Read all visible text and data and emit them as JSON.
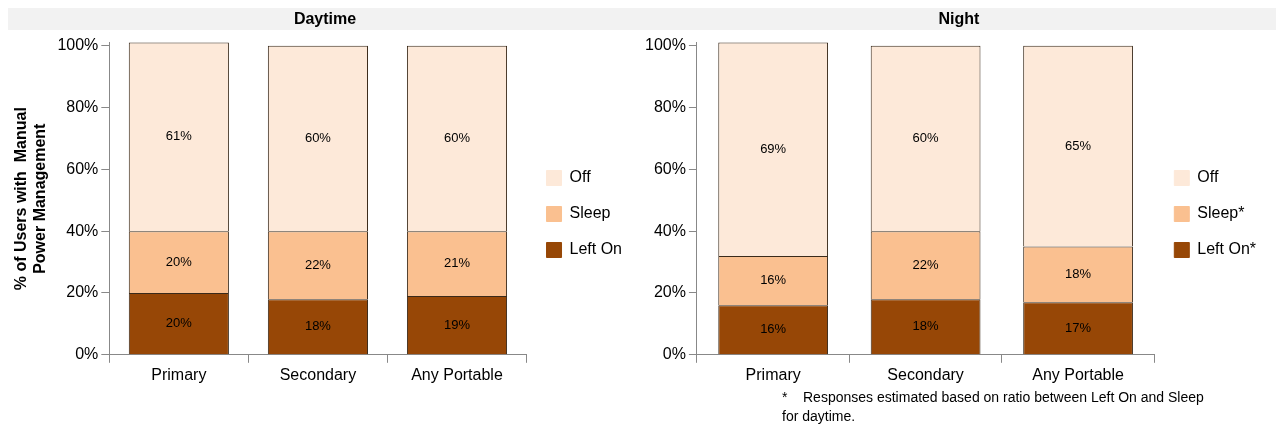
{
  "chart_data": [
    {
      "type": "bar",
      "title": "Daytime",
      "ylabel": "% of Users with  Manual\nPower Management",
      "categories": [
        "Primary",
        "Secondary",
        "Any Portable"
      ],
      "stacked": true,
      "series": [
        {
          "name": "Left On",
          "color": "#974706",
          "values": [
            20,
            18,
            19
          ],
          "value_labels": [
            "20%",
            "18%",
            "19%"
          ]
        },
        {
          "name": "Sleep",
          "color": "#fac090",
          "values": [
            20,
            22,
            21
          ],
          "value_labels": [
            "20%",
            "22%",
            "21%"
          ]
        },
        {
          "name": "Off",
          "color": "#fde9d9",
          "values": [
            61,
            60,
            60
          ],
          "value_labels": [
            "61%",
            "60%",
            "60%"
          ]
        }
      ],
      "ylim": [
        0,
        101
      ],
      "yticks": [
        {
          "value": 0,
          "label": "0%"
        },
        {
          "value": 20,
          "label": "20%"
        },
        {
          "value": 40,
          "label": "40%"
        },
        {
          "value": 60,
          "label": "60%"
        },
        {
          "value": 80,
          "label": "80%"
        },
        {
          "value": 100,
          "label": "100%"
        }
      ],
      "grid": false,
      "legend": "right"
    },
    {
      "type": "bar",
      "title": "Night",
      "categories": [
        "Primary",
        "Secondary",
        "Any Portable"
      ],
      "stacked": true,
      "series": [
        {
          "name": "Left On*",
          "color": "#974706",
          "values": [
            16,
            18,
            17
          ],
          "value_labels": [
            "16%",
            "18%",
            "17%"
          ]
        },
        {
          "name": "Sleep*",
          "color": "#fac090",
          "values": [
            16,
            22,
            18
          ],
          "value_labels": [
            "16%",
            "22%",
            "18%"
          ]
        },
        {
          "name": "Off",
          "color": "#fde9d9",
          "values": [
            69,
            60,
            65
          ],
          "value_labels": [
            "69%",
            "60%",
            "65%"
          ]
        }
      ],
      "ylim": [
        0,
        101
      ],
      "yticks": [
        {
          "value": 0,
          "label": "0%"
        },
        {
          "value": 20,
          "label": "20%"
        },
        {
          "value": 40,
          "label": "40%"
        },
        {
          "value": 60,
          "label": "60%"
        },
        {
          "value": 80,
          "label": "80%"
        },
        {
          "value": 100,
          "label": "100%"
        }
      ],
      "grid": false,
      "legend": "right",
      "annotations": [
        "*    Responses estimated based on ratio between Left On and Sleep for daytime."
      ]
    }
  ]
}
